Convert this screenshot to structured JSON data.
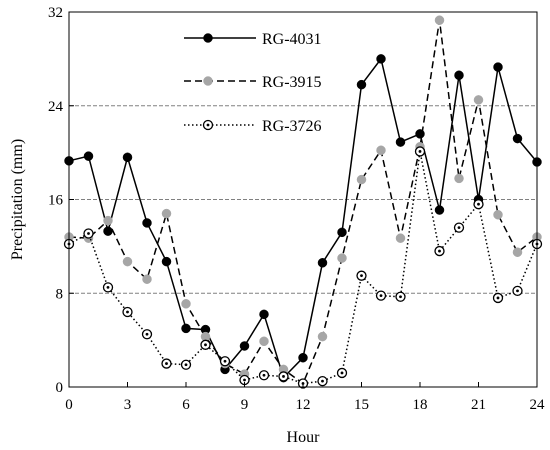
{
  "chart_data": {
    "type": "line",
    "xlabel": "Hour",
    "ylabel": "Precipitation (mm)",
    "xlim": [
      0,
      24
    ],
    "ylim": [
      0,
      32
    ],
    "xticks": [
      "0",
      "3",
      "6",
      "9",
      "12",
      "15",
      "18",
      "21",
      "24"
    ],
    "yticks": [
      "0",
      "8",
      "16",
      "24",
      "32"
    ],
    "xtick_values": [
      0,
      3,
      6,
      9,
      12,
      15,
      18,
      21,
      24
    ],
    "ytick_values": [
      0,
      8,
      16,
      24,
      32
    ],
    "gridlines_y": [
      8,
      16,
      24
    ],
    "legend_position": "top-left",
    "x": [
      0,
      1,
      2,
      3,
      4,
      5,
      6,
      7,
      8,
      9,
      10,
      11,
      12,
      13,
      14,
      15,
      16,
      17,
      18,
      19,
      20,
      21,
      22,
      23,
      24
    ],
    "series": [
      {
        "name": "RG-4031",
        "style": "solid",
        "marker": "filled-black",
        "color": "#000000",
        "values": [
          19.3,
          19.7,
          13.3,
          19.6,
          14.0,
          10.7,
          5.0,
          4.9,
          1.5,
          3.5,
          6.2,
          0.8,
          2.5,
          10.6,
          13.2,
          25.8,
          28.0,
          20.9,
          21.6,
          15.1,
          26.6,
          16.0,
          27.3,
          21.2,
          19.2
        ]
      },
      {
        "name": "RG-3915",
        "style": "dashed",
        "marker": "filled-gray",
        "color": "#a6a6a6",
        "values": [
          12.8,
          12.7,
          14.2,
          10.7,
          9.2,
          14.8,
          7.1,
          4.3,
          2.0,
          1.1,
          3.9,
          1.5,
          0.3,
          4.3,
          11.0,
          17.7,
          20.2,
          12.7,
          20.5,
          31.3,
          17.8,
          24.5,
          14.7,
          11.5,
          12.8
        ]
      },
      {
        "name": "RG-3726",
        "style": "dotted",
        "marker": "open-dot",
        "color": "#000000",
        "values": [
          12.2,
          13.1,
          8.5,
          6.4,
          4.5,
          2.0,
          1.9,
          3.6,
          2.2,
          0.6,
          1.0,
          0.9,
          0.3,
          0.5,
          1.2,
          9.5,
          7.8,
          7.7,
          20.1,
          11.6,
          13.6,
          15.6,
          7.6,
          8.2,
          12.2
        ]
      }
    ]
  }
}
